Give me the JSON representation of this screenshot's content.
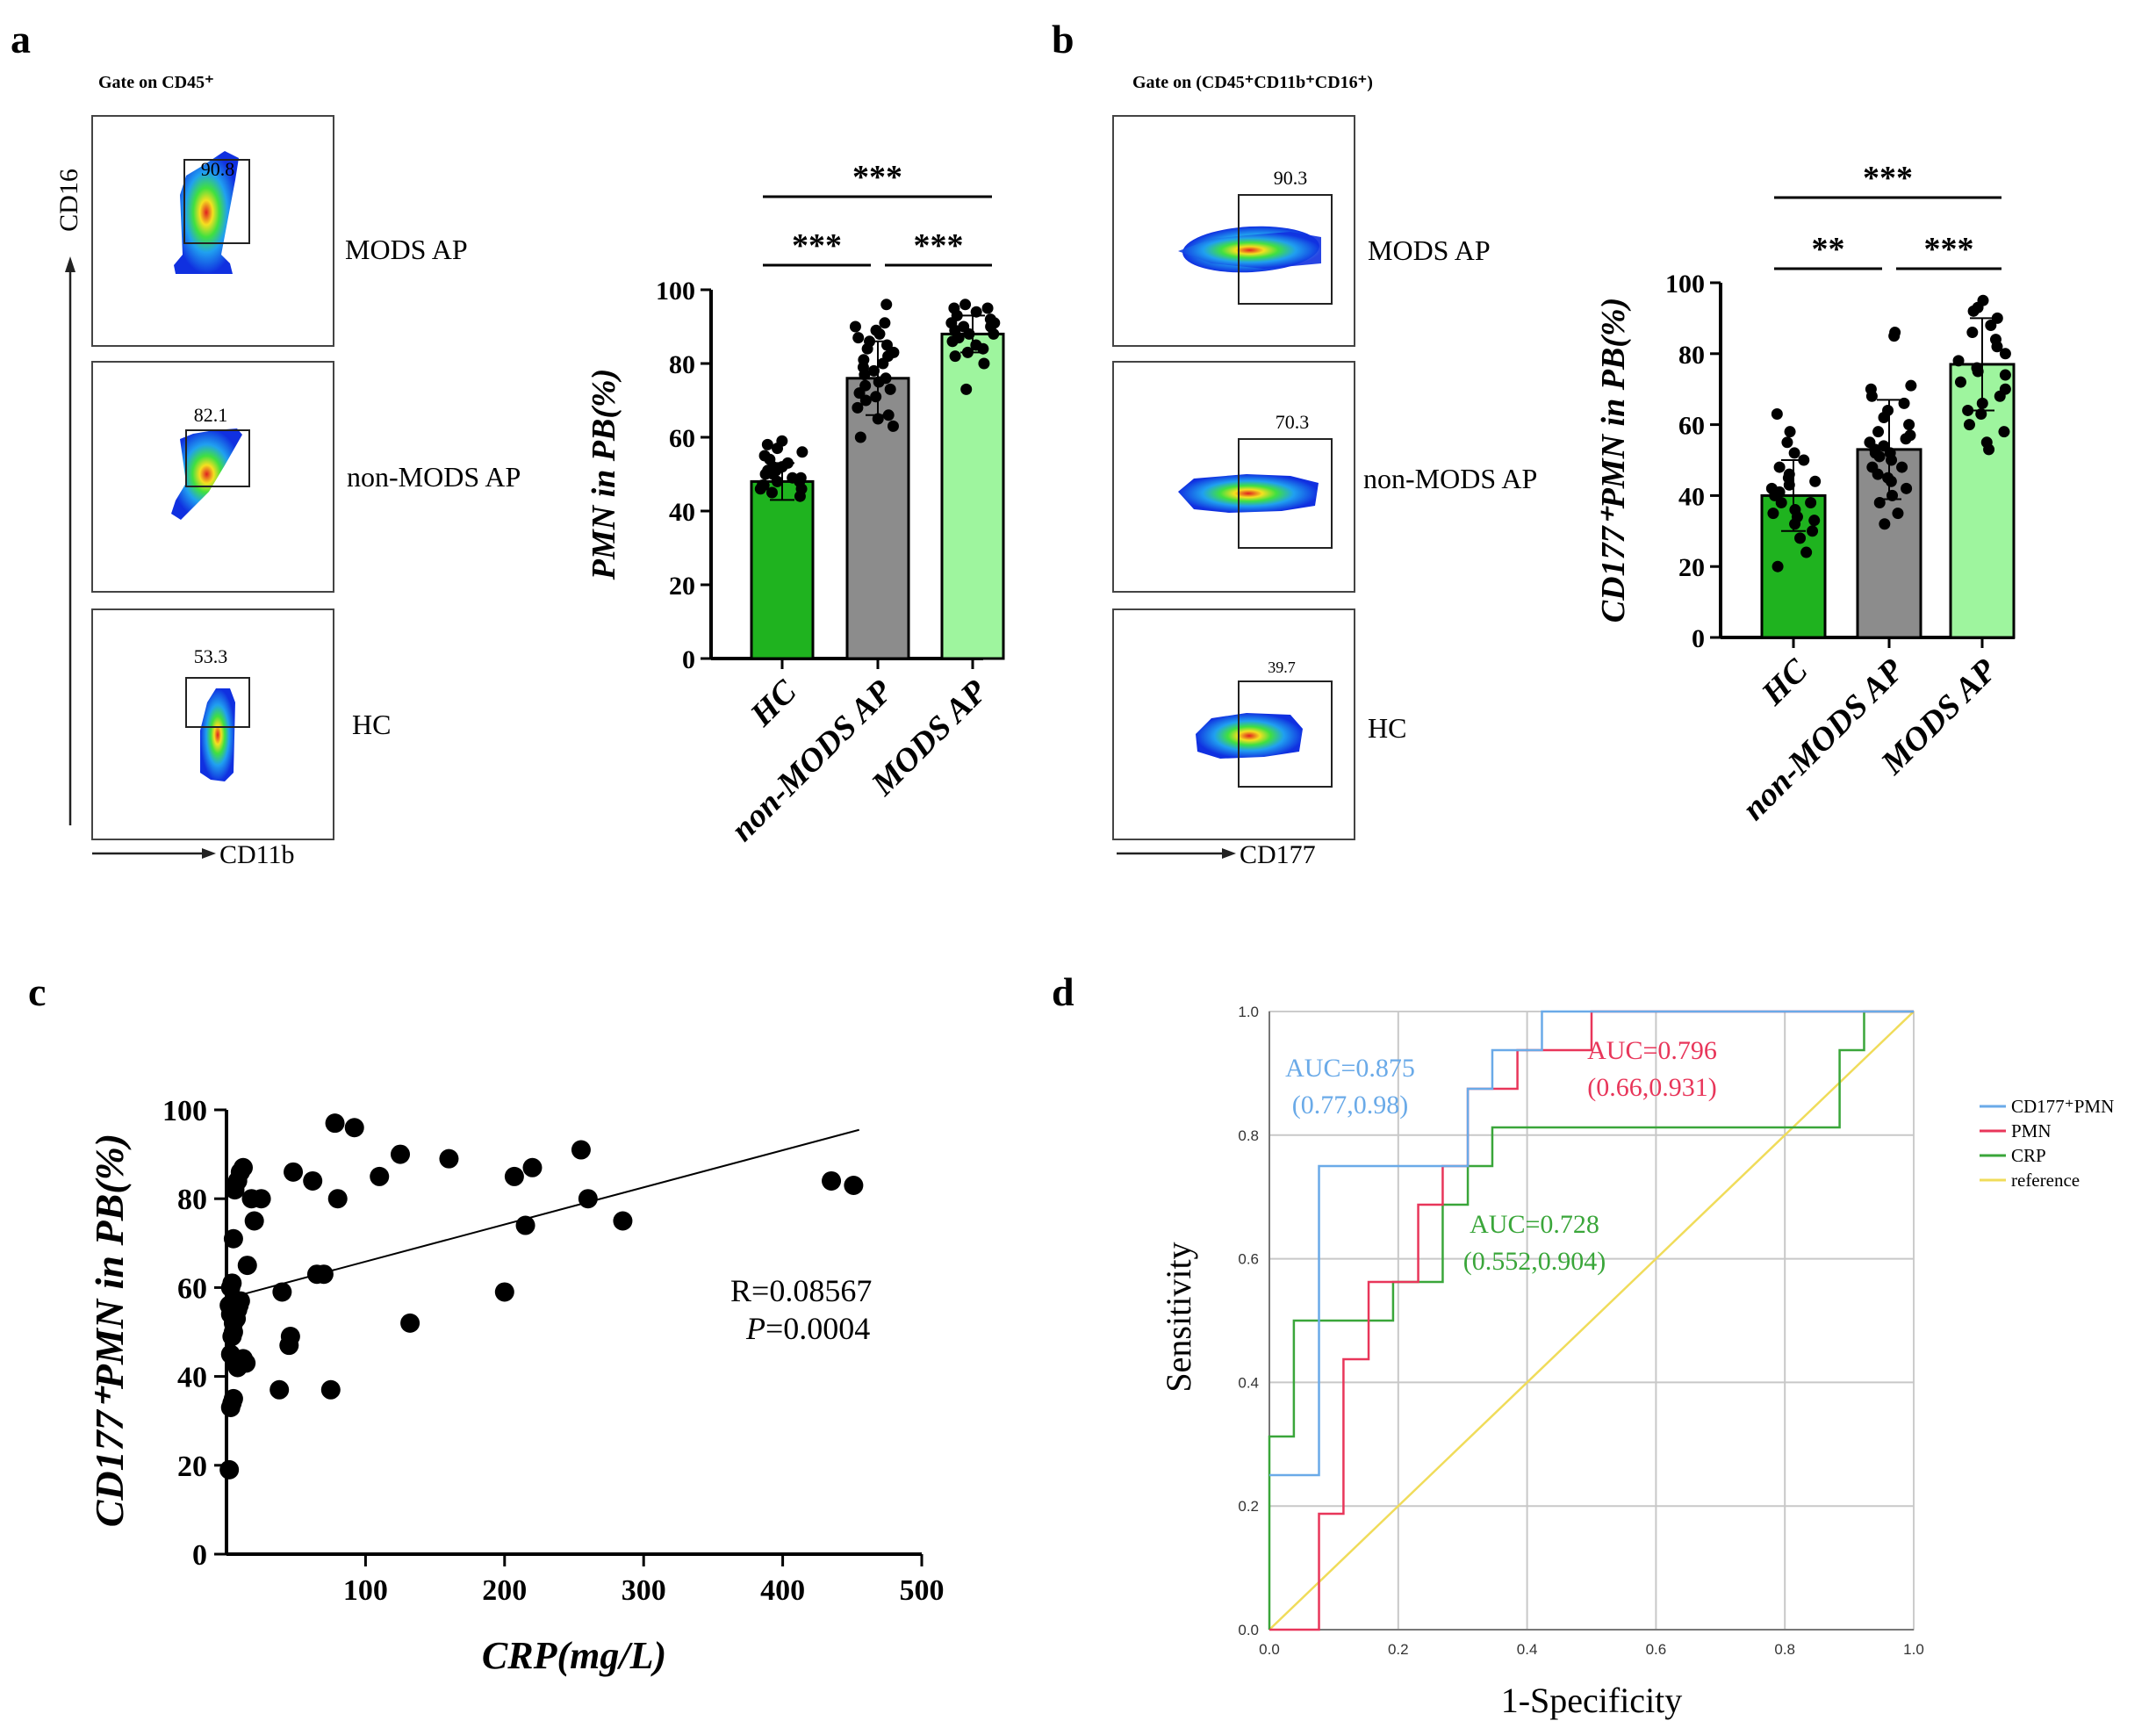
{
  "panels": {
    "a": {
      "letter": "a",
      "gate": "Gate on CD45⁺",
      "y_axis": "CD16",
      "x_axis": "CD11b",
      "flow": [
        {
          "value": "90.8",
          "label": "MODS AP"
        },
        {
          "value": "82.1",
          "label": "non-MODS AP"
        },
        {
          "value": "53.3",
          "label": "HC"
        }
      ]
    },
    "b": {
      "letter": "b",
      "gate": "Gate on (CD45⁺CD11b⁺CD16⁺)",
      "x_axis": "CD177",
      "flow": [
        {
          "value": "90.3",
          "label": "MODS AP"
        },
        {
          "value": "70.3",
          "label": "non-MODS AP"
        },
        {
          "value": "39.7",
          "label": "HC"
        }
      ]
    },
    "c": {
      "letter": "c"
    },
    "d": {
      "letter": "d"
    }
  },
  "colors": {
    "hc_bar": "#1fb31f",
    "nonmods_bar": "#8c8c8c",
    "mods_bar": "#9ef59e",
    "roc_cd177": "#6aaae8",
    "roc_pmn": "#e8365a",
    "roc_crp": "#3aa63a",
    "roc_ref": "#f0dc5a"
  },
  "chart_data": [
    {
      "id": "a_bar",
      "type": "bar",
      "title": "",
      "ylabel": "PMN in PB(%)",
      "ylim": [
        0,
        100
      ],
      "yticks": [
        "0",
        "20",
        "40",
        "60",
        "80",
        "100"
      ],
      "categories": [
        "HC",
        "non-MODS AP",
        "MODS AP"
      ],
      "values": [
        48,
        76,
        88
      ],
      "errors": [
        5,
        10,
        5
      ],
      "points": [
        [
          44,
          46,
          47,
          48,
          49,
          50,
          51,
          52,
          53,
          54,
          55,
          56,
          57,
          58,
          59,
          45,
          47,
          49,
          50,
          52,
          46,
          48,
          51
        ],
        [
          60,
          63,
          66,
          68,
          70,
          72,
          73,
          74,
          75,
          76,
          77,
          78,
          79,
          80,
          81,
          82,
          83,
          84,
          85,
          86,
          87,
          88,
          89,
          90,
          91,
          96,
          65,
          71
        ],
        [
          73,
          80,
          83,
          84,
          85,
          86,
          87,
          88,
          88,
          89,
          90,
          90,
          91,
          91,
          92,
          93,
          94,
          95,
          95,
          96,
          82,
          87
        ]
      ],
      "significance": [
        {
          "from": 0,
          "to": 1,
          "label": "***"
        },
        {
          "from": 1,
          "to": 2,
          "label": "***"
        },
        {
          "from": 0,
          "to": 2,
          "label": "***"
        }
      ]
    },
    {
      "id": "b_bar",
      "type": "bar",
      "title": "",
      "ylabel": "CD177⁺PMN in PB(%)",
      "ylim": [
        0,
        100
      ],
      "yticks": [
        "0",
        "20",
        "40",
        "60",
        "80",
        "100"
      ],
      "categories": [
        "HC",
        "non-MODS AP",
        "MODS AP"
      ],
      "values": [
        40,
        53,
        77
      ],
      "errors": [
        10,
        14,
        13
      ],
      "points": [
        [
          20,
          24,
          28,
          30,
          32,
          34,
          35,
          36,
          38,
          40,
          41,
          42,
          43,
          44,
          45,
          46,
          48,
          50,
          52,
          55,
          58,
          63,
          38,
          33
        ],
        [
          32,
          35,
          38,
          40,
          42,
          44,
          45,
          46,
          48,
          50,
          51,
          52,
          53,
          54,
          55,
          56,
          57,
          58,
          60,
          62,
          64,
          66,
          68,
          70,
          71,
          85,
          86,
          48,
          52
        ],
        [
          53,
          55,
          58,
          60,
          64,
          66,
          68,
          70,
          72,
          74,
          76,
          78,
          80,
          82,
          84,
          86,
          88,
          90,
          92,
          93,
          95,
          63,
          75
        ]
      ],
      "significance": [
        {
          "from": 0,
          "to": 1,
          "label": "**"
        },
        {
          "from": 1,
          "to": 2,
          "label": "***"
        },
        {
          "from": 0,
          "to": 2,
          "label": "***"
        }
      ]
    },
    {
      "id": "c_scatter",
      "type": "scatter",
      "title": "",
      "xlabel": "CRP(mg/L)",
      "ylabel": "CD177⁺PMN in PB(%)",
      "xlim": [
        0,
        500
      ],
      "ylim": [
        0,
        100
      ],
      "xticks": [
        "100",
        "200",
        "300",
        "400",
        "500"
      ],
      "yticks": [
        "0",
        "20",
        "40",
        "60",
        "80",
        "100"
      ],
      "x": [
        2,
        3,
        4,
        5,
        6,
        3,
        4,
        5,
        7,
        8,
        9,
        10,
        11,
        12,
        3,
        4,
        5,
        6,
        8,
        10,
        12,
        15,
        18,
        20,
        25,
        38,
        40,
        45,
        46,
        48,
        62,
        65,
        70,
        75,
        78,
        80,
        92,
        110,
        125,
        132,
        160,
        200,
        207,
        215,
        220,
        255,
        260,
        285,
        435,
        451,
        2,
        3,
        5,
        8,
        14
      ],
      "y": [
        19,
        33,
        34,
        35,
        44,
        45,
        49,
        52,
        53,
        55,
        56,
        57,
        43,
        44,
        60,
        61,
        71,
        82,
        84,
        86,
        87,
        65,
        80,
        75,
        80,
        37,
        59,
        47,
        49,
        86,
        84,
        63,
        63,
        37,
        97,
        80,
        96,
        85,
        90,
        52,
        89,
        59,
        85,
        74,
        87,
        91,
        80,
        75,
        84,
        83,
        56,
        54,
        50,
        42,
        43
      ],
      "fit": {
        "x": [
          0,
          455
        ],
        "y": [
          57.5,
          95.5
        ]
      },
      "annotation": {
        "r": "R=0.08567",
        "p_label": "P",
        "p_value": "=0.0004"
      }
    },
    {
      "id": "d_roc",
      "type": "line",
      "title": "",
      "xlabel": "1-Specificity",
      "ylabel": "Sensitivity",
      "xlim": [
        0,
        1
      ],
      "ylim": [
        0,
        1
      ],
      "xticks": [
        "0.0",
        "0.2",
        "0.4",
        "0.6",
        "0.8",
        "1.0"
      ],
      "yticks": [
        "0.0",
        "0.2",
        "0.4",
        "0.6",
        "0.8",
        "1.0"
      ],
      "series": [
        {
          "name": "CD177⁺PMN",
          "color": "#6aaae8",
          "points": [
            [
              0,
              0.25
            ],
            [
              0.077,
              0.25
            ],
            [
              0.077,
              0.75
            ],
            [
              0.308,
              0.75
            ],
            [
              0.308,
              0.875
            ],
            [
              0.346,
              0.875
            ],
            [
              0.346,
              0.9375
            ],
            [
              0.423,
              0.9375
            ],
            [
              0.423,
              1
            ],
            [
              1,
              1
            ]
          ]
        },
        {
          "name": "PMN",
          "color": "#e8365a",
          "points": [
            [
              0,
              0
            ],
            [
              0.077,
              0
            ],
            [
              0.077,
              0.1875
            ],
            [
              0.115,
              0.1875
            ],
            [
              0.115,
              0.4375
            ],
            [
              0.154,
              0.4375
            ],
            [
              0.154,
              0.5625
            ],
            [
              0.231,
              0.5625
            ],
            [
              0.231,
              0.625
            ],
            [
              0.231,
              0.6875
            ],
            [
              0.269,
              0.6875
            ],
            [
              0.269,
              0.75
            ],
            [
              0.308,
              0.75
            ],
            [
              0.308,
              0.875
            ],
            [
              0.385,
              0.875
            ],
            [
              0.385,
              0.9375
            ],
            [
              0.5,
              0.9375
            ],
            [
              0.5,
              1
            ],
            [
              1,
              1
            ]
          ]
        },
        {
          "name": "CRP",
          "color": "#3aa63a",
          "points": [
            [
              0,
              0
            ],
            [
              0,
              0.3125
            ],
            [
              0.038,
              0.3125
            ],
            [
              0.038,
              0.5
            ],
            [
              0.192,
              0.5
            ],
            [
              0.192,
              0.5625
            ],
            [
              0.269,
              0.5625
            ],
            [
              0.269,
              0.6875
            ],
            [
              0.308,
              0.6875
            ],
            [
              0.308,
              0.75
            ],
            [
              0.346,
              0.75
            ],
            [
              0.346,
              0.8125
            ],
            [
              0.885,
              0.8125
            ],
            [
              0.885,
              0.9375
            ],
            [
              0.923,
              0.9375
            ],
            [
              0.923,
              1
            ],
            [
              1,
              1
            ]
          ]
        },
        {
          "name": "reference",
          "color": "#f0dc5a",
          "points": [
            [
              0,
              0
            ],
            [
              1,
              1
            ]
          ]
        }
      ],
      "auc_labels": [
        {
          "auc": "AUC=0.875",
          "ci": "(0.77,0.98)",
          "color": "#6aaae8"
        },
        {
          "auc": "AUC=0.796",
          "ci": "(0.66,0.931)",
          "color": "#e8365a"
        },
        {
          "auc": "AUC=0.728",
          "ci": "(0.552,0.904)",
          "color": "#3aa63a"
        }
      ]
    }
  ]
}
